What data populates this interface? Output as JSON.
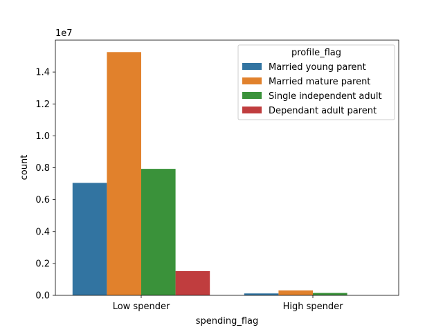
{
  "chart_data": {
    "type": "bar",
    "title": "",
    "xlabel": "spending_flag",
    "ylabel": "count",
    "y_multiplier_label": "1e7",
    "categories": [
      "Low spender",
      "High spender"
    ],
    "ylim": [
      0,
      1.6
    ],
    "yticks": [
      0.0,
      0.2,
      0.4,
      0.6,
      0.8,
      1.0,
      1.2,
      1.4
    ],
    "ytick_labels": [
      "0.0",
      "0.2",
      "0.4",
      "0.6",
      "0.8",
      "1.0",
      "1.2",
      "1.4"
    ],
    "legend": {
      "title": "profile_flag",
      "placement": "top-right"
    },
    "grid": false,
    "series": [
      {
        "name": "Married young parent",
        "color": "#3274a1",
        "values": [
          0.705,
          0.012
        ]
      },
      {
        "name": "Married mature parent",
        "color": "#e1812c",
        "values": [
          1.525,
          0.031
        ]
      },
      {
        "name": "Single independent adult",
        "color": "#3a923a",
        "values": [
          0.793,
          0.015
        ]
      },
      {
        "name": "Dependant adult parent",
        "color": "#c03d3e",
        "values": [
          0.152,
          0.0
        ]
      }
    ]
  }
}
